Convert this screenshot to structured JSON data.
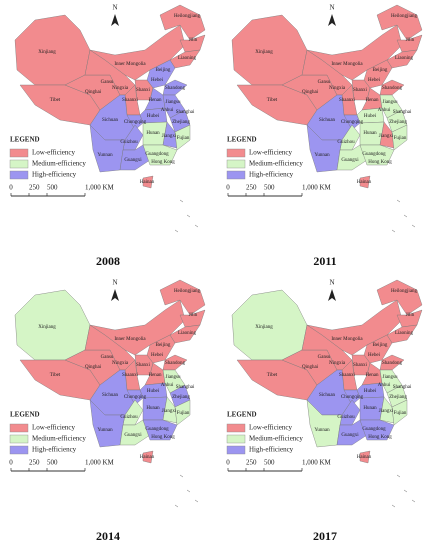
{
  "legend": {
    "title": "LEGEND",
    "items": [
      {
        "label": "Low-efficiency",
        "color": "#f28b8e"
      },
      {
        "label": "Medium-efficiency",
        "color": "#d5f5c6"
      },
      {
        "label": "High-efficiency",
        "color": "#9c95f0"
      }
    ]
  },
  "scale": {
    "labels": [
      "0",
      "250",
      "500",
      "1,000 KM"
    ]
  },
  "north": "N",
  "province_labels": [
    "Xinjiang",
    "Tibet",
    "Qinghai",
    "Gansu",
    "Ningxia",
    "Inner Mongolia",
    "Heilongjiang",
    "Jilin",
    "Liaoning",
    "Beijing",
    "Hebei",
    "Shanxi",
    "Shaanxi",
    "Shandong",
    "Henan",
    "Jiangsu",
    "Anhui",
    "Shanghai",
    "Zhejiang",
    "Hubei",
    "Sichuan",
    "Chongqing",
    "Guizhou",
    "Hunan",
    "Jiangxi",
    "Fujian",
    "Yunnan",
    "Guangxi",
    "Guangdong",
    "Hong Kong",
    "Hainan"
  ],
  "panels": [
    {
      "year": "2008",
      "classes": [
        0,
        0,
        0,
        0,
        0,
        0,
        0,
        0,
        2,
        0,
        0,
        2,
        2,
        2,
        2,
        2,
        2,
        2,
        2,
        1,
        2,
        1,
        2,
        0
      ]
    },
    {
      "year": "2011",
      "classes": [
        0,
        0,
        0,
        0,
        0,
        0,
        0,
        0,
        0,
        0,
        0,
        0,
        0,
        1,
        1,
        1,
        2,
        2,
        1,
        1,
        0,
        1,
        2,
        0
      ]
    },
    {
      "year": "2014",
      "classes": [
        1,
        0,
        0,
        0,
        0,
        0,
        0,
        0,
        0,
        0,
        0,
        0,
        0,
        1,
        2,
        2,
        2,
        2,
        1,
        2,
        1,
        1,
        2,
        0
      ]
    },
    {
      "year": "2017",
      "classes": [
        1,
        0,
        0,
        0,
        0,
        0,
        0,
        0,
        0,
        0,
        0,
        0,
        0,
        1,
        1,
        2,
        2,
        2,
        2,
        2,
        1,
        1,
        1,
        0
      ]
    }
  ]
}
